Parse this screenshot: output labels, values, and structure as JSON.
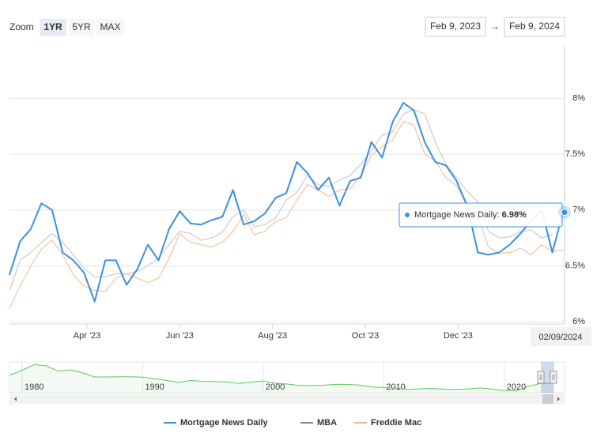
{
  "chart_data": {
    "type": "line",
    "zoom_label": "Zoom",
    "zoom_buttons": [
      "1YR",
      "5YR",
      "MAX"
    ],
    "selected_button": 0,
    "range_from": "Feb 9, 2023",
    "range_arrow": "→",
    "range_to": "Feb 9, 2024",
    "x": [
      "2023-02-09",
      "2023-02-16",
      "2023-02-23",
      "2023-03-02",
      "2023-03-09",
      "2023-03-16",
      "2023-03-23",
      "2023-03-30",
      "2023-04-06",
      "2023-04-13",
      "2023-04-20",
      "2023-04-27",
      "2023-05-04",
      "2023-05-11",
      "2023-05-18",
      "2023-05-25",
      "2023-06-01",
      "2023-06-08",
      "2023-06-15",
      "2023-06-22",
      "2023-06-29",
      "2023-07-06",
      "2023-07-13",
      "2023-07-20",
      "2023-07-27",
      "2023-08-03",
      "2023-08-10",
      "2023-08-17",
      "2023-08-24",
      "2023-08-31",
      "2023-09-07",
      "2023-09-14",
      "2023-09-21",
      "2023-09-28",
      "2023-10-05",
      "2023-10-12",
      "2023-10-19",
      "2023-10-26",
      "2023-11-02",
      "2023-11-09",
      "2023-11-16",
      "2023-11-23",
      "2023-11-30",
      "2023-12-07",
      "2023-12-14",
      "2023-12-21",
      "2023-12-28",
      "2024-01-04",
      "2024-01-11",
      "2024-01-18",
      "2024-01-25",
      "2024-02-01",
      "2024-02-08",
      "2024-02-09"
    ],
    "series": [
      {
        "name": "Mortgage News Daily",
        "color": "#3d8fe0",
        "width": 2,
        "values": [
          6.42,
          6.72,
          6.83,
          7.06,
          7.0,
          6.62,
          6.55,
          6.44,
          6.18,
          6.55,
          6.55,
          6.33,
          6.47,
          6.69,
          6.55,
          6.83,
          6.99,
          6.88,
          6.87,
          6.91,
          6.94,
          7.18,
          6.87,
          6.9,
          6.97,
          7.11,
          7.15,
          7.43,
          7.33,
          7.18,
          7.29,
          7.04,
          7.26,
          7.29,
          7.61,
          7.47,
          7.79,
          7.96,
          7.89,
          7.61,
          7.43,
          7.4,
          7.26,
          7.04,
          6.62,
          6.6,
          6.62,
          6.69,
          6.79,
          6.9,
          7.0,
          6.62,
          6.98,
          6.98
        ]
      },
      {
        "name": "MBA",
        "color": "#d5d5d5",
        "width": 1.5,
        "values": [
          6.28,
          6.55,
          6.62,
          6.71,
          6.79,
          6.71,
          6.6,
          6.48,
          6.4,
          6.4,
          6.43,
          6.43,
          6.45,
          6.5,
          6.57,
          6.69,
          6.81,
          6.79,
          6.73,
          6.75,
          6.8,
          6.94,
          7.0,
          6.85,
          6.87,
          6.93,
          7.09,
          7.16,
          7.31,
          7.23,
          7.21,
          7.27,
          7.31,
          7.41,
          7.53,
          7.67,
          7.7,
          7.86,
          7.9,
          7.86,
          7.61,
          7.41,
          7.29,
          7.17,
          7.07,
          6.81,
          6.75,
          6.76,
          6.81,
          6.82,
          6.75,
          6.78,
          null,
          null
        ]
      },
      {
        "name": "Freddie Mac",
        "color": "#f8cdb0",
        "width": 1.5,
        "values": [
          6.12,
          6.32,
          6.5,
          6.65,
          6.73,
          6.6,
          6.42,
          6.32,
          6.28,
          6.27,
          6.39,
          6.43,
          6.39,
          6.35,
          6.39,
          6.57,
          6.79,
          6.71,
          6.69,
          6.67,
          6.71,
          6.81,
          6.96,
          6.78,
          6.81,
          6.9,
          6.93,
          7.09,
          7.23,
          7.18,
          7.12,
          7.18,
          7.19,
          7.31,
          7.49,
          7.57,
          7.63,
          7.79,
          7.76,
          7.5,
          7.44,
          7.29,
          7.22,
          7.03,
          6.95,
          6.67,
          6.61,
          6.62,
          6.66,
          6.6,
          6.69,
          6.63,
          6.64,
          null
        ]
      }
    ],
    "legend_legend_colors": [
      "#3d8fe0",
      "#888888",
      "#f5b88e"
    ],
    "xlim": [
      "2023-02-09",
      "2024-02-09"
    ],
    "xticks": [
      {
        "value": "2023-04-01",
        "label": "Apr '23"
      },
      {
        "value": "2023-06-01",
        "label": "Jun '23"
      },
      {
        "value": "2023-08-01",
        "label": "Aug '23"
      },
      {
        "value": "2023-10-01",
        "label": "Oct '23"
      },
      {
        "value": "2023-12-01",
        "label": "Dec '23"
      }
    ],
    "ylim": [
      5.98,
      8.47
    ],
    "yticks": [
      {
        "value": 6,
        "label": "6%"
      },
      {
        "value": 6.5,
        "label": "6.5%"
      },
      {
        "value": 7,
        "label": "7%"
      },
      {
        "value": 7.5,
        "label": "7.5%"
      },
      {
        "value": 8,
        "label": "8%"
      }
    ],
    "grid": true,
    "tooltip": {
      "series": 0,
      "index": 53,
      "text": "Mortgage News Daily: ",
      "value_label": "6.98%"
    },
    "crosshair_label": "02/09/2024",
    "navigator": {
      "color": "#62c462",
      "x": [
        1979,
        1980,
        1981,
        1982,
        1983,
        1984,
        1985,
        1986,
        1987,
        1988,
        1989,
        1990,
        1991,
        1992,
        1993,
        1994,
        1995,
        1996,
        1997,
        1998,
        1999,
        2000,
        2001,
        2002,
        2003,
        2004,
        2005,
        2006,
        2007,
        2008,
        2009,
        2010,
        2011,
        2012,
        2013,
        2014,
        2015,
        2016,
        2017,
        2018,
        2019,
        2020,
        2021,
        2022,
        2023,
        2024
      ],
      "values": [
        11.2,
        13.7,
        16.6,
        16.0,
        13.2,
        13.9,
        12.4,
        10.2,
        10.2,
        10.3,
        10.3,
        10.1,
        9.3,
        8.4,
        7.3,
        8.4,
        7.9,
        7.8,
        7.6,
        6.9,
        7.4,
        8.1,
        7.0,
        6.5,
        5.8,
        5.8,
        5.9,
        6.4,
        6.3,
        6.0,
        5.0,
        4.7,
        4.5,
        3.7,
        4.0,
        4.2,
        3.9,
        3.7,
        4.0,
        4.5,
        3.9,
        3.1,
        3.0,
        5.3,
        6.8,
        6.9
      ],
      "xlim": [
        1978.95,
        2025.0
      ],
      "ylim": [
        2,
        18
      ],
      "xticks": [
        1980,
        1990,
        2000,
        2010,
        2020
      ]
    }
  }
}
